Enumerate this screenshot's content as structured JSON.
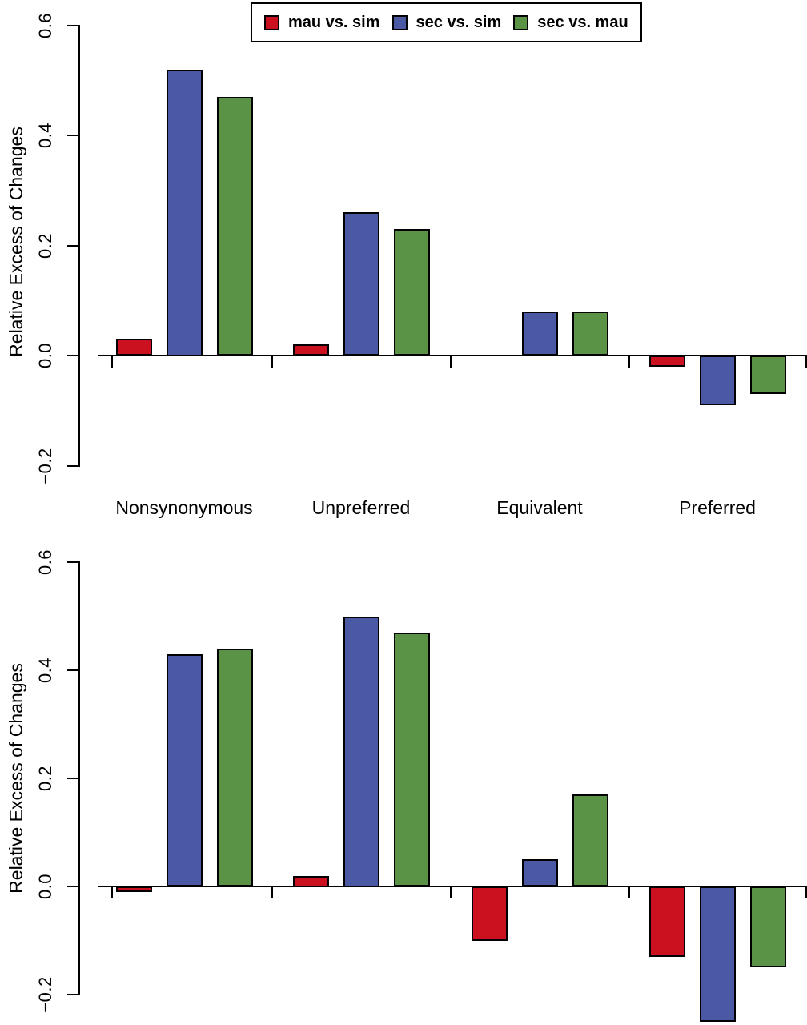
{
  "figure": {
    "background": "#ffffff",
    "axis_color": "#000000"
  },
  "legend": {
    "position": "top",
    "border_color": "#000000"
  },
  "chart_data": [
    {
      "type": "bar",
      "panel": "top",
      "title": "",
      "categories": [
        "Nonsynonymous",
        "Unpreferred",
        "Equivalent",
        "Preferred"
      ],
      "series": [
        {
          "name": "mau vs. sim",
          "color": "#cb1120",
          "values": [
            0.03,
            0.02,
            0.0,
            -0.02
          ]
        },
        {
          "name": "sec vs. sim",
          "color": "#4b59a4",
          "values": [
            0.52,
            0.26,
            0.08,
            -0.09
          ]
        },
        {
          "name": "sec vs. mau",
          "color": "#5a9346",
          "values": [
            0.47,
            0.23,
            0.08,
            -0.07
          ]
        }
      ],
      "xlabel": "",
      "ylabel": "Relative Excess of Changes",
      "yticks": [
        0.6,
        0.4,
        0.2,
        0.0,
        -0.2
      ],
      "ytick_labels": [
        "0.6",
        "0.4",
        "0.2",
        "0.0",
        "−0.2"
      ],
      "ylim": [
        -0.2,
        0.6
      ],
      "grid": false,
      "show_category_labels": true
    },
    {
      "type": "bar",
      "panel": "bottom",
      "title": "",
      "categories": [
        "Nonsynonymous",
        "Unpreferred",
        "Equivalent",
        "Preferred"
      ],
      "series": [
        {
          "name": "mau vs. sim",
          "color": "#cb1120",
          "values": [
            -0.01,
            0.02,
            -0.1,
            -0.13
          ]
        },
        {
          "name": "sec vs. sim",
          "color": "#4b59a4",
          "values": [
            0.43,
            0.5,
            0.05,
            -0.25
          ]
        },
        {
          "name": "sec vs. mau",
          "color": "#5a9346",
          "values": [
            0.44,
            0.47,
            0.17,
            -0.15
          ]
        }
      ],
      "xlabel": "",
      "ylabel": "Relative Excess of Changes",
      "yticks": [
        0.6,
        0.4,
        0.2,
        0.0,
        -0.2
      ],
      "ytick_labels": [
        "0.6",
        "0.4",
        "0.2",
        "0.0",
        "−0.2"
      ],
      "ylim": [
        -0.26,
        0.6
      ],
      "grid": false,
      "show_category_labels": false
    }
  ]
}
